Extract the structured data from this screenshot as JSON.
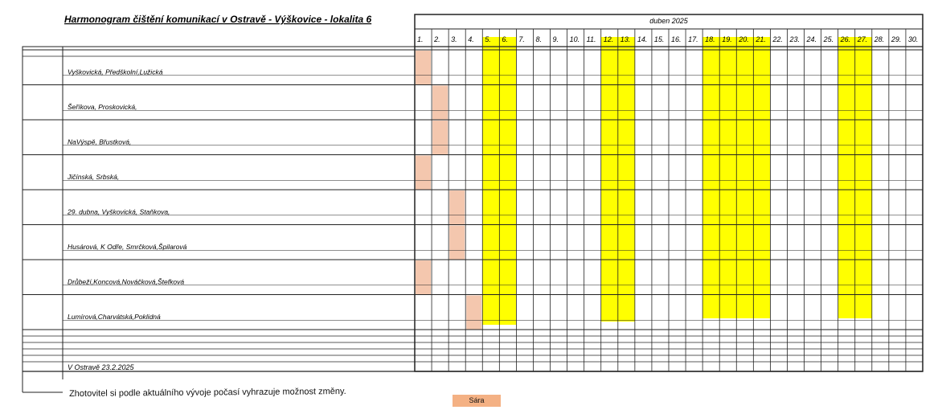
{
  "title": "Harmonogram čištění komunikací v Ostravě - Výškovice - lokalita 6",
  "month": "duben 2025",
  "days": [
    "1.",
    "2.",
    "3.",
    "4.",
    "5.",
    "6.",
    "7.",
    "8.",
    "9.",
    "10.",
    "11.",
    "12.",
    "13.",
    "14.",
    "15.",
    "16.",
    "17.",
    "18.",
    "19.",
    "20.",
    "21.",
    "22.",
    "23.",
    "24.",
    "25.",
    "26.",
    "27.",
    "28.",
    "29.",
    "30."
  ],
  "highlighted_days": [
    5,
    6,
    12,
    13,
    18,
    19,
    20,
    21,
    26,
    27
  ],
  "rows": [
    {
      "streets": "Vyškovická, Předškolní,Lužická",
      "cleaning_day": 1
    },
    {
      "streets": "Šeříkova, Proskovická,",
      "cleaning_day": 2
    },
    {
      "streets": "NaVýspě, Břustková,",
      "cleaning_day": 2
    },
    {
      "streets": "Jičínská, Srbská,",
      "cleaning_day": 1
    },
    {
      "streets": "29. dubna, Vyškovická, Staňkova,",
      "cleaning_day": 3
    },
    {
      "streets": "Husárová, K Odře, Smrčková,Špilarová",
      "cleaning_day": 3
    },
    {
      "streets": "Drůbeží,Koncová,Nováčková,Štefková",
      "cleaning_day": 1
    },
    {
      "streets": "Lumírová,Charvátská,Poklidná",
      "cleaning_day": 4
    }
  ],
  "footer_date": "V Ostravě 23.2.2025",
  "note": "Zhotovitel si podle aktuálního vývoje počasí vyhrazuje možnost změny.",
  "signature_label": "Sára",
  "colors": {
    "weekend": "#ffff00",
    "cleaning": "#f4c7ae",
    "signature": "#f4b184",
    "line": "#222222"
  }
}
